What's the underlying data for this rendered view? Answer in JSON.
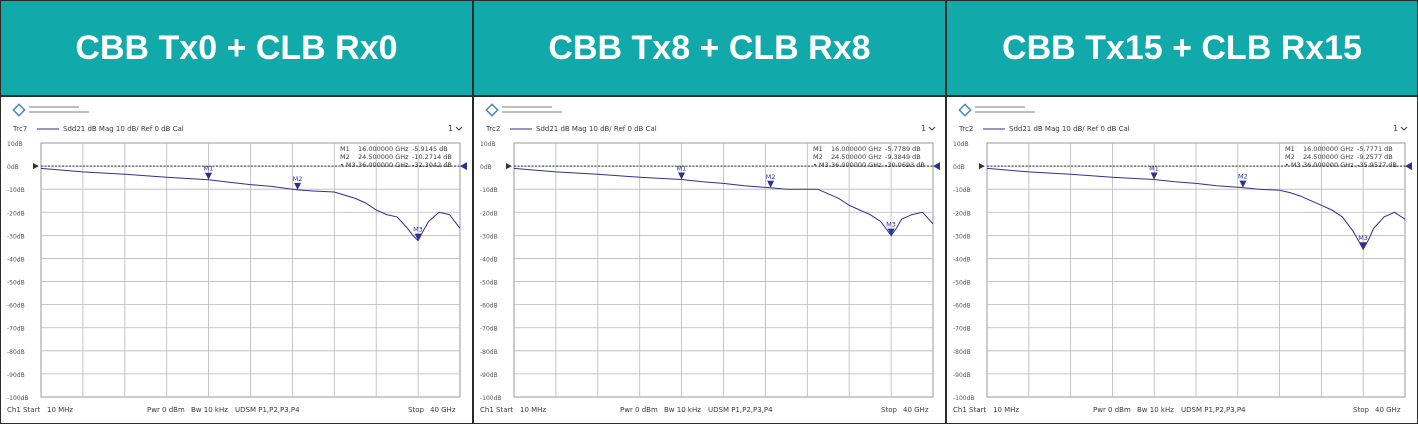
{
  "panels": [
    {
      "title": "CBB Tx0 + CLB Rx0",
      "trace_label": "Trc7",
      "trace_param": "Sdd21   dB Mag   10 dB/ Ref 0 dB   Cal",
      "channel_marker": "1",
      "markers": [
        {
          "name": "M1",
          "freq": "16.000000  GHz",
          "value": "-5.9145  dB"
        },
        {
          "name": "M2",
          "freq": "24.500000  GHz",
          "value": "-10.2714  dB"
        },
        {
          "name": "M3",
          "freq": "36.000000  GHz",
          "value": "-32.3042  dB"
        }
      ],
      "status": {
        "ch": "Ch1",
        "start_label": "Start",
        "start": "10 MHz",
        "pwr": "Pwr   0 dBm",
        "bw": "Bw   10 kHz",
        "ports": "UDSM P1,P2,P3,P4",
        "stop_label": "Stop",
        "stop": "40 GHz"
      },
      "chart_data": {
        "type": "line",
        "xlabel": "",
        "ylabel": "",
        "xlim": [
          0.01,
          40
        ],
        "ylim": [
          -100,
          10
        ],
        "grid": true,
        "y_tick_labels": [
          "10dB",
          "0dB",
          "-10dB",
          "-20dB",
          "-30dB",
          "-40dB",
          "-50dB",
          "-60dB",
          "-70dB",
          "-80dB",
          "-90dB",
          "-100dB"
        ],
        "ref_line": 0,
        "markers": [
          {
            "name": "M1",
            "x": 16,
            "y": -5.9
          },
          {
            "name": "M2",
            "x": 24.5,
            "y": -10.3
          },
          {
            "name": "M3",
            "x": 36,
            "y": -32.3
          }
        ],
        "x": [
          0.01,
          4,
          8,
          12,
          16,
          18,
          20,
          22,
          24.5,
          26,
          28,
          30,
          31,
          32,
          33,
          34,
          35,
          35.5,
          36,
          36.5,
          37,
          38,
          39,
          40
        ],
        "y": [
          -1,
          -2.5,
          -3.5,
          -4.8,
          -5.9,
          -7,
          -8,
          -8.8,
          -10.3,
          -10.8,
          -11.2,
          -14,
          -16,
          -19,
          -21,
          -22,
          -27,
          -30,
          -32.3,
          -28,
          -24,
          -20,
          -21,
          -27
        ]
      }
    },
    {
      "title": "CBB Tx8 + CLB Rx8",
      "trace_label": "Trc2",
      "trace_param": "Sdd21   dB Mag   10 dB/ Ref 0 dB   Cal",
      "channel_marker": "1",
      "markers": [
        {
          "name": "M1",
          "freq": "16.000000  GHz",
          "value": "-5.7789  dB"
        },
        {
          "name": "M2",
          "freq": "24.500000  GHz",
          "value": "-9.3849  dB"
        },
        {
          "name": "M3",
          "freq": "36.000000  GHz",
          "value": "-30.0693  dB"
        }
      ],
      "status": {
        "ch": "Ch1",
        "start_label": "Start",
        "start": "10 MHz",
        "pwr": "Pwr   0 dBm",
        "bw": "Bw   10 kHz",
        "ports": "UDSM P1,P2,P3,P4",
        "stop_label": "Stop",
        "stop": "40 GHz"
      },
      "chart_data": {
        "type": "line",
        "xlabel": "",
        "ylabel": "",
        "xlim": [
          0.01,
          40
        ],
        "ylim": [
          -100,
          10
        ],
        "grid": true,
        "y_tick_labels": [
          "10dB",
          "0dB",
          "-10dB",
          "-20dB",
          "-30dB",
          "-40dB",
          "-50dB",
          "-60dB",
          "-70dB",
          "-80dB",
          "-90dB",
          "-100dB"
        ],
        "ref_line": 0,
        "markers": [
          {
            "name": "M1",
            "x": 16,
            "y": -5.8
          },
          {
            "name": "M2",
            "x": 24.5,
            "y": -9.4
          },
          {
            "name": "M3",
            "x": 36,
            "y": -30.1
          }
        ],
        "x": [
          0.01,
          4,
          8,
          12,
          16,
          18,
          20,
          22,
          24.5,
          26,
          28,
          29,
          30,
          31,
          32,
          33,
          34,
          35,
          35.5,
          36,
          36.5,
          37,
          38,
          39,
          40
        ],
        "y": [
          -1,
          -2.5,
          -3.5,
          -4.8,
          -5.8,
          -6.8,
          -7.5,
          -8.5,
          -9.4,
          -10,
          -10,
          -10,
          -12,
          -14,
          -17,
          -19,
          -21,
          -24,
          -27,
          -30.1,
          -27,
          -23,
          -21,
          -20,
          -25
        ]
      }
    },
    {
      "title": "CBB Tx15 + CLB Rx15",
      "trace_label": "Trc2",
      "trace_param": "Sdd21   dB Mag   10 dB/ Ref 0 dB   Cal",
      "channel_marker": "1",
      "markers": [
        {
          "name": "M1",
          "freq": "16.000000  GHz",
          "value": "-5.7771  dB"
        },
        {
          "name": "M2",
          "freq": "24.500000  GHz",
          "value": "-9.2577  dB"
        },
        {
          "name": "M3",
          "freq": "36.000000  GHz",
          "value": "-35.9527  dB"
        }
      ],
      "status": {
        "ch": "Ch1",
        "start_label": "Start",
        "start": "10 MHz",
        "pwr": "Pwr   0 dBm",
        "bw": "Bw   10 kHz",
        "ports": "UDSM P1,P2,P3,P4",
        "stop_label": "Stop",
        "stop": "40 GHz"
      },
      "chart_data": {
        "type": "line",
        "xlabel": "",
        "ylabel": "",
        "xlim": [
          0.01,
          40
        ],
        "ylim": [
          -100,
          10
        ],
        "grid": true,
        "y_tick_labels": [
          "10dB",
          "0dB",
          "-10dB",
          "-20dB",
          "-30dB",
          "-40dB",
          "-50dB",
          "-60dB",
          "-70dB",
          "-80dB",
          "-90dB",
          "-100dB"
        ],
        "ref_line": 0,
        "markers": [
          {
            "name": "M1",
            "x": 16,
            "y": -5.8
          },
          {
            "name": "M2",
            "x": 24.5,
            "y": -9.3
          },
          {
            "name": "M3",
            "x": 36,
            "y": -36
          }
        ],
        "x": [
          0.01,
          4,
          8,
          12,
          16,
          18,
          20,
          22,
          24.5,
          26,
          28,
          29,
          30,
          31,
          32,
          33,
          34,
          35,
          35.5,
          36,
          36.5,
          37,
          38,
          39,
          40
        ],
        "y": [
          -1,
          -2.5,
          -3.5,
          -4.8,
          -5.8,
          -6.8,
          -7.5,
          -8.5,
          -9.3,
          -10,
          -10.5,
          -11.5,
          -13,
          -15,
          -17,
          -19,
          -22,
          -28,
          -32,
          -36,
          -32,
          -27,
          -22,
          -20,
          -23
        ]
      }
    }
  ]
}
